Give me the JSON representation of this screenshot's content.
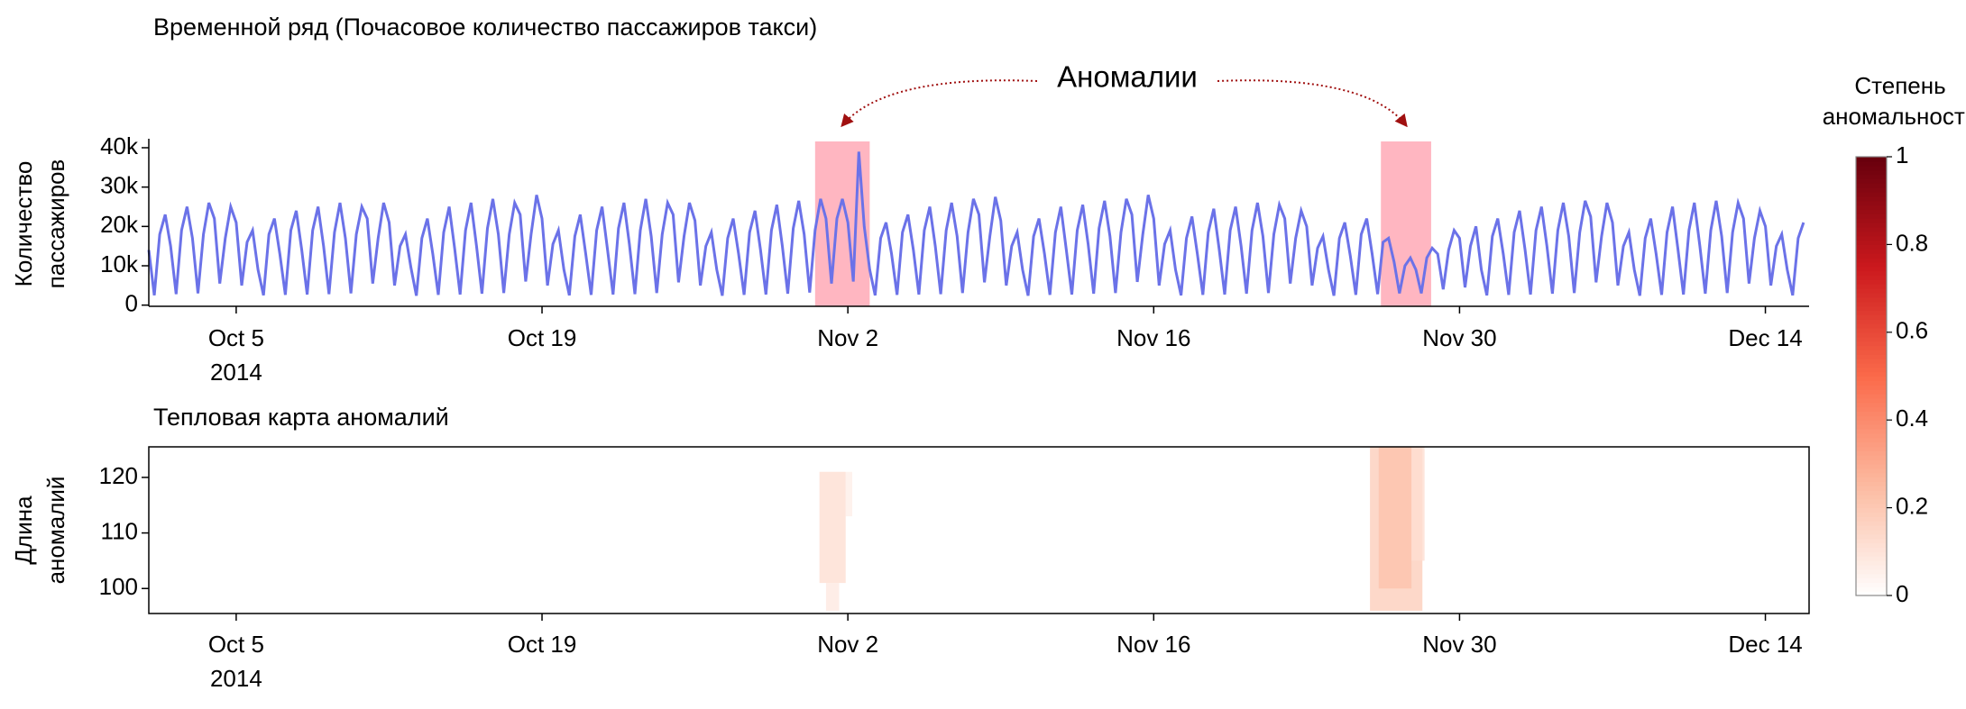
{
  "chart_data": [
    {
      "type": "line",
      "title": "Временной ряд (Почасовое количество пассажиров такси)",
      "ylabel": [
        "Количество",
        "пассажиров"
      ],
      "annotation": "Аномалии",
      "anomaly_regions": [
        [
          30.5,
          33.0
        ],
        [
          56.4,
          58.7
        ]
      ],
      "region_color": "#ffb6c1",
      "xlim": [
        0,
        76
      ],
      "xticks": [
        {
          "value": 4,
          "label": "Oct 5"
        },
        {
          "value": 18,
          "label": "Oct 19"
        },
        {
          "value": 32,
          "label": "Nov 2"
        },
        {
          "value": 46,
          "label": "Nov 16"
        },
        {
          "value": 60,
          "label": "Nov 30"
        },
        {
          "value": 74,
          "label": "Dec 14"
        }
      ],
      "x_year_label": "2014",
      "ylim": [
        -300,
        41600
      ],
      "yticks": [
        0,
        {
          "value": 10000,
          "label": "10k"
        },
        {
          "value": 20000,
          "label": "20k"
        },
        {
          "value": 30000,
          "label": "30k"
        },
        {
          "value": 40000,
          "label": "40k"
        }
      ],
      "x": [
        0,
        0.25,
        0.5,
        0.75,
        1,
        1.25,
        1.5,
        1.75,
        2,
        2.25,
        2.5,
        2.75,
        3,
        3.25,
        3.5,
        3.75,
        4,
        4.25,
        4.5,
        4.75,
        5,
        5.25,
        5.5,
        5.75,
        6,
        6.25,
        6.5,
        6.75,
        7,
        7.25,
        7.5,
        7.75,
        8,
        8.25,
        8.5,
        8.75,
        9,
        9.25,
        9.5,
        9.75,
        10,
        10.25,
        10.5,
        10.75,
        11,
        11.25,
        11.5,
        11.75,
        12,
        12.25,
        12.5,
        12.75,
        13,
        13.25,
        13.5,
        13.75,
        14,
        14.25,
        14.5,
        14.75,
        15,
        15.25,
        15.5,
        15.75,
        16,
        16.25,
        16.5,
        16.75,
        17,
        17.25,
        17.5,
        17.75,
        18,
        18.25,
        18.5,
        18.75,
        19,
        19.25,
        19.5,
        19.75,
        20,
        20.25,
        20.5,
        20.75,
        21,
        21.25,
        21.5,
        21.75,
        22,
        22.25,
        22.5,
        22.75,
        23,
        23.25,
        23.5,
        23.75,
        24,
        24.25,
        24.5,
        24.75,
        25,
        25.25,
        25.5,
        25.75,
        26,
        26.25,
        26.5,
        26.75,
        27,
        27.25,
        27.5,
        27.75,
        28,
        28.25,
        28.5,
        28.75,
        29,
        29.25,
        29.5,
        29.75,
        30,
        30.25,
        30.5,
        30.75,
        31,
        31.25,
        31.5,
        31.75,
        32,
        32.25,
        32.5,
        32.75,
        33,
        33.25,
        33.5,
        33.75,
        34,
        34.25,
        34.5,
        34.75,
        35,
        35.25,
        35.5,
        35.75,
        36,
        36.25,
        36.5,
        36.75,
        37,
        37.25,
        37.5,
        37.75,
        38,
        38.25,
        38.5,
        38.75,
        39,
        39.25,
        39.5,
        39.75,
        40,
        40.25,
        40.5,
        40.75,
        41,
        41.25,
        41.5,
        41.75,
        42,
        42.25,
        42.5,
        42.75,
        43,
        43.25,
        43.5,
        43.75,
        44,
        44.25,
        44.5,
        44.75,
        45,
        45.25,
        45.5,
        45.75,
        46,
        46.25,
        46.5,
        46.75,
        47,
        47.25,
        47.5,
        47.75,
        48,
        48.25,
        48.5,
        48.75,
        49,
        49.25,
        49.5,
        49.75,
        50,
        50.25,
        50.5,
        50.75,
        51,
        51.25,
        51.5,
        51.75,
        52,
        52.25,
        52.5,
        52.75,
        53,
        53.25,
        53.5,
        53.75,
        54,
        54.25,
        54.5,
        54.75,
        55,
        55.25,
        55.5,
        55.75,
        56,
        56.25,
        56.5,
        56.75,
        57,
        57.25,
        57.5,
        57.75,
        58,
        58.25,
        58.5,
        58.75,
        59,
        59.25,
        59.5,
        59.75,
        60,
        60.25,
        60.5,
        60.75,
        61,
        61.25,
        61.5,
        61.75,
        62,
        62.25,
        62.5,
        62.75,
        63,
        63.25,
        63.5,
        63.75,
        64,
        64.25,
        64.5,
        64.75,
        65,
        65.25,
        65.5,
        65.75,
        66,
        66.25,
        66.5,
        66.75,
        67,
        67.25,
        67.5,
        67.75,
        68,
        68.25,
        68.5,
        68.75,
        69,
        69.25,
        69.5,
        69.75,
        70,
        70.25,
        70.5,
        70.75,
        71,
        71.25,
        71.5,
        71.75,
        72,
        72.25,
        72.5,
        72.75,
        73,
        73.25,
        73.5,
        73.75,
        74,
        74.25,
        74.5,
        74.75,
        75,
        75.25,
        75.5,
        75.75
      ],
      "series": [
        {
          "color": "#6b72e8",
          "values": [
            14000,
            2500,
            18000,
            23000,
            15000,
            2800,
            19000,
            25000,
            17000,
            3000,
            18000,
            26000,
            22000,
            5500,
            17000,
            25000,
            21000,
            5000,
            16000,
            19000,
            9000,
            2500,
            18000,
            22000,
            13000,
            2600,
            19000,
            24000,
            14000,
            2700,
            19000,
            25000,
            15000,
            2800,
            18500,
            26000,
            17000,
            3000,
            18000,
            25000,
            22000,
            5500,
            17000,
            26000,
            21000,
            5000,
            15000,
            18000,
            9500,
            2400,
            17000,
            22000,
            13000,
            2600,
            18500,
            25000,
            14500,
            2700,
            19000,
            26000,
            15000,
            2900,
            19500,
            27000,
            18000,
            3100,
            18000,
            26000,
            23000,
            6000,
            18000,
            28000,
            22000,
            5000,
            15500,
            19000,
            9000,
            2500,
            17500,
            23000,
            13000,
            2600,
            19000,
            25000,
            14000,
            2700,
            19500,
            26000,
            15500,
            2800,
            19000,
            27000,
            17500,
            3100,
            18000,
            26000,
            23000,
            5800,
            17500,
            26000,
            21500,
            5000,
            15000,
            18500,
            9000,
            2400,
            17000,
            22000,
            13000,
            2600,
            18500,
            24000,
            14000,
            2700,
            19000,
            25500,
            15000,
            2900,
            19500,
            26500,
            18000,
            3200,
            19000,
            27000,
            22000,
            5500,
            22000,
            27000,
            21000,
            6000,
            39000,
            20000,
            9000,
            2500,
            17000,
            21000,
            13000,
            2600,
            18500,
            23000,
            14000,
            2700,
            19000,
            25000,
            15000,
            2800,
            19000,
            26000,
            17500,
            3100,
            18500,
            27000,
            23000,
            5800,
            17500,
            27500,
            21500,
            5000,
            15000,
            18500,
            9000,
            2400,
            17500,
            22000,
            13000,
            2600,
            18500,
            25000,
            14000,
            2700,
            19000,
            25500,
            15500,
            2900,
            19500,
            26500,
            17500,
            3100,
            18500,
            27000,
            23000,
            5900,
            18000,
            28000,
            22000,
            5000,
            15500,
            19000,
            9000,
            2500,
            17000,
            22500,
            13000,
            2600,
            18500,
            24500,
            14000,
            2700,
            19000,
            25000,
            15000,
            2900,
            19000,
            26000,
            17500,
            3100,
            18000,
            25500,
            22000,
            5500,
            17000,
            24000,
            20000,
            5000,
            14500,
            17500,
            9000,
            2400,
            17000,
            21000,
            12500,
            2600,
            18000,
            22000,
            13000,
            2800,
            16000,
            17000,
            11000,
            3000,
            10000,
            12000,
            9000,
            3000,
            12000,
            14500,
            13000,
            4000,
            14000,
            19000,
            17000,
            4500,
            15000,
            20000,
            9000,
            2500,
            17500,
            22000,
            13000,
            2600,
            18500,
            24000,
            14000,
            2700,
            19000,
            25000,
            15000,
            2900,
            19000,
            26000,
            17500,
            3100,
            18500,
            26500,
            22500,
            5800,
            17500,
            26000,
            21000,
            5000,
            15000,
            18500,
            9000,
            2400,
            17000,
            22000,
            13000,
            2600,
            18500,
            25000,
            14000,
            2700,
            19000,
            26000,
            15000,
            2900,
            19000,
            26500,
            17500,
            3100,
            18500,
            26000,
            22000,
            5500,
            17000,
            24000,
            20000,
            5000,
            15000,
            18000,
            9000,
            2500,
            17000,
            21000
          ]
        }
      ]
    },
    {
      "type": "heatmap",
      "title": "Тепловая карта аномалий",
      "ylabel": [
        "Длина",
        "аномалий"
      ],
      "xlim": [
        0,
        76
      ],
      "xticks": [
        {
          "value": 4,
          "label": "Oct 5"
        },
        {
          "value": 18,
          "label": "Oct 19"
        },
        {
          "value": 32,
          "label": "Nov 2"
        },
        {
          "value": 46,
          "label": "Nov 16"
        },
        {
          "value": 60,
          "label": "Nov 30"
        },
        {
          "value": 74,
          "label": "Dec 14"
        }
      ],
      "x_year_label": "2014",
      "ylim": [
        95.5,
        125.5
      ],
      "yticks": [
        100,
        110,
        120
      ],
      "cells": [
        {
          "x": [
            30.7,
            31.9
          ],
          "y": [
            101,
            121
          ],
          "value": 0.12
        },
        {
          "x": [
            31.0,
            31.6
          ],
          "y": [
            96,
            101
          ],
          "value": 0.08
        },
        {
          "x": [
            31.9,
            32.2
          ],
          "y": [
            113,
            121
          ],
          "value": 0.06
        },
        {
          "x": [
            55.9,
            58.3
          ],
          "y": [
            96,
            126
          ],
          "value": 0.18
        },
        {
          "x": [
            56.3,
            57.8
          ],
          "y": [
            100,
            126
          ],
          "value": 0.22
        },
        {
          "x": [
            57.8,
            58.4
          ],
          "y": [
            105,
            126
          ],
          "value": 0.12
        }
      ],
      "colorbar_title": [
        "Степень",
        "аномальности"
      ],
      "colorbar_lim": [
        0,
        1
      ],
      "colorbar_ticks": [
        0,
        0.2,
        0.4,
        0.6,
        0.8,
        1
      ]
    }
  ]
}
